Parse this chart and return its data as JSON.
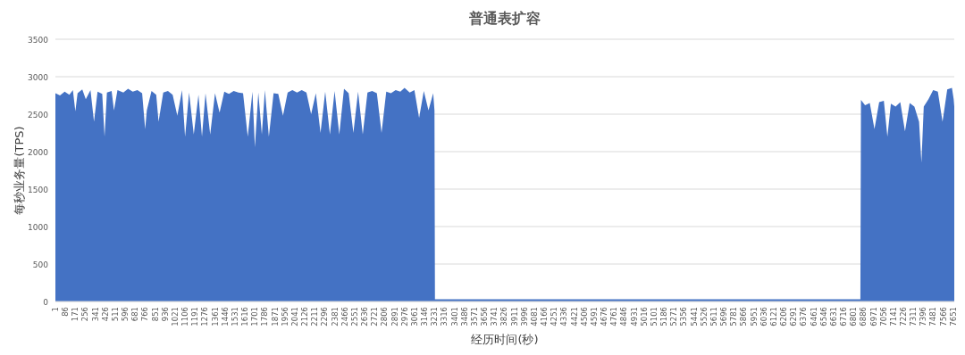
{
  "chart_data": {
    "type": "area",
    "title": "普通表扩容",
    "xlabel": "经历时间(秒)",
    "ylabel": "每秒业务量(TPS)",
    "grid": "y",
    "xlim": [
      1,
      7660
    ],
    "ylim": [
      0,
      3500
    ],
    "yticks": [
      0,
      500,
      1000,
      1500,
      2000,
      2500,
      3000,
      3500
    ],
    "xticks": [
      1,
      86,
      171,
      256,
      341,
      426,
      511,
      596,
      681,
      766,
      851,
      936,
      1021,
      1106,
      1191,
      1276,
      1361,
      1446,
      1531,
      1616,
      1701,
      1786,
      1871,
      1956,
      2041,
      2126,
      2211,
      2296,
      2381,
      2466,
      2551,
      2636,
      2721,
      2806,
      2891,
      2976,
      3061,
      3146,
      3231,
      3316,
      3401,
      3486,
      3571,
      3656,
      3741,
      3826,
      3911,
      3996,
      4081,
      4166,
      4251,
      4336,
      4421,
      4506,
      4591,
      4676,
      4761,
      4846,
      4931,
      5016,
      5101,
      5186,
      5271,
      5356,
      5441,
      5526,
      5611,
      5696,
      5781,
      5866,
      5951,
      6036,
      6121,
      6206,
      6291,
      6376,
      6461,
      6546,
      6631,
      6716,
      6801,
      6886,
      6971,
      7056,
      7141,
      7226,
      7311,
      7396,
      7481,
      7566,
      7651
    ],
    "series": [
      {
        "color": "#4472c4",
        "x": [
          1,
          40,
          80,
          120,
          150,
          171,
          190,
          230,
          260,
          300,
          330,
          360,
          400,
          420,
          440,
          480,
          500,
          530,
          580,
          620,
          660,
          700,
          740,
          766,
          780,
          820,
          860,
          880,
          920,
          960,
          1000,
          1040,
          1080,
          1106,
          1140,
          1180,
          1220,
          1250,
          1280,
          1320,
          1361,
          1400,
          1440,
          1480,
          1520,
          1560,
          1600,
          1640,
          1680,
          1701,
          1730,
          1760,
          1786,
          1820,
          1860,
          1900,
          1940,
          1980,
          2020,
          2060,
          2100,
          2140,
          2180,
          2220,
          2260,
          2300,
          2340,
          2380,
          2420,
          2460,
          2500,
          2540,
          2580,
          2620,
          2660,
          2700,
          2740,
          2780,
          2820,
          2860,
          2900,
          2940,
          2976,
          3020,
          3060,
          3100,
          3140,
          3180,
          3220,
          3231,
          3235,
          3600,
          4000,
          4500,
          5000,
          5500,
          6000,
          6500,
          6860,
          6865,
          6900,
          6940,
          6980,
          7020,
          7060,
          7090,
          7120,
          7160,
          7200,
          7240,
          7280,
          7320,
          7360,
          7380,
          7400,
          7440,
          7480,
          7520,
          7560,
          7600,
          7640,
          7655,
          7660
        ],
        "values": [
          2780,
          2750,
          2800,
          2760,
          2820,
          2540,
          2780,
          2830,
          2700,
          2820,
          2400,
          2800,
          2770,
          2200,
          2790,
          2810,
          2550,
          2820,
          2790,
          2840,
          2800,
          2820,
          2780,
          2300,
          2550,
          2810,
          2760,
          2400,
          2790,
          2810,
          2760,
          2480,
          2820,
          2200,
          2790,
          2230,
          2760,
          2200,
          2780,
          2230,
          2780,
          2520,
          2800,
          2770,
          2810,
          2790,
          2780,
          2200,
          2800,
          2060,
          2790,
          2230,
          2820,
          2200,
          2780,
          2770,
          2480,
          2790,
          2820,
          2790,
          2820,
          2790,
          2500,
          2780,
          2250,
          2800,
          2230,
          2810,
          2230,
          2840,
          2780,
          2250,
          2800,
          2230,
          2790,
          2810,
          2780,
          2250,
          2800,
          2780,
          2820,
          2800,
          2850,
          2790,
          2820,
          2450,
          2810,
          2550,
          2780,
          2550,
          30,
          30,
          30,
          30,
          30,
          30,
          30,
          30,
          30,
          2690,
          2620,
          2650,
          2300,
          2660,
          2680,
          2200,
          2640,
          2600,
          2660,
          2270,
          2650,
          2600,
          2400,
          1850,
          2600,
          2700,
          2820,
          2800,
          2400,
          2830,
          2850,
          2700,
          2600
        ]
      }
    ]
  }
}
